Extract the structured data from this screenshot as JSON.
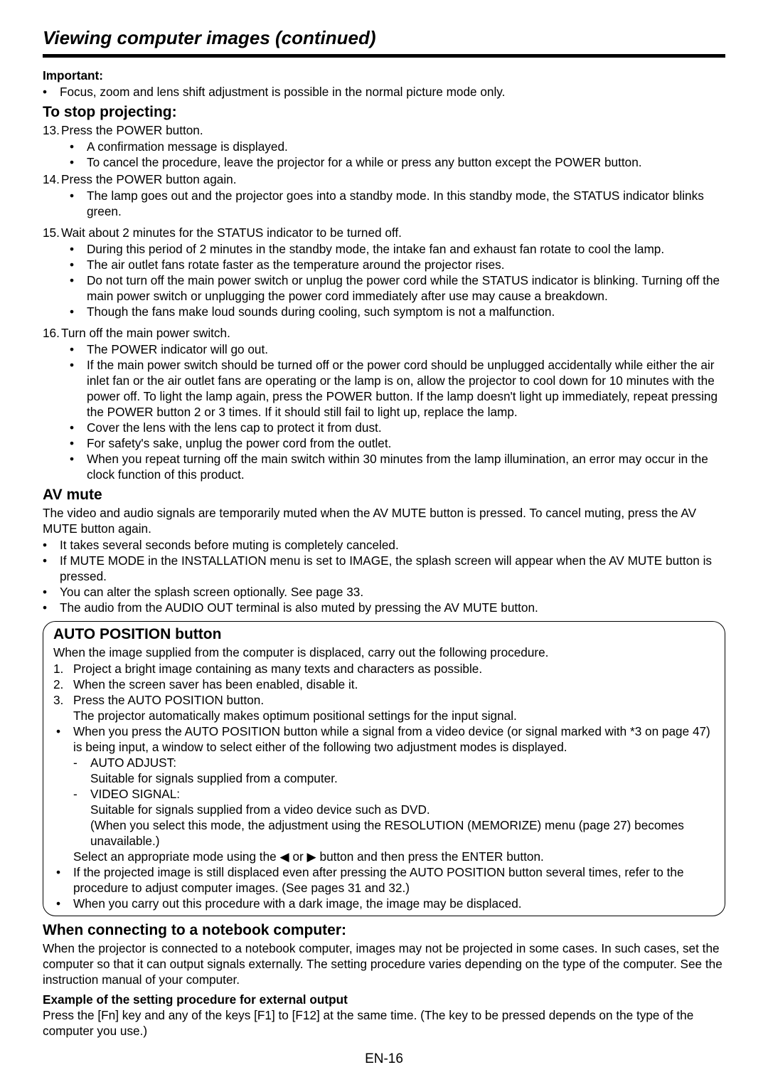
{
  "page": {
    "title": "Viewing computer images (continued)",
    "number": "EN-16"
  },
  "important": {
    "heading": "Important:",
    "bullets": [
      "Focus, zoom and lens shift adjustment is possible in the normal picture mode only."
    ]
  },
  "stop_projecting": {
    "heading": "To stop projecting:",
    "steps": [
      {
        "num": "13.",
        "text": "Press the POWER button.",
        "bullets": [
          "A confirmation message is displayed.",
          "To cancel the procedure, leave the projector for a while or press any button except the POWER button."
        ]
      },
      {
        "num": "14.",
        "text": "Press the POWER button again.",
        "bullets": [
          "The lamp goes out and the projector goes into a standby mode. In this standby mode, the STATUS indicator blinks green."
        ]
      },
      {
        "num": "15.",
        "text": "Wait about 2 minutes for the STATUS indicator to be turned off.",
        "bullets": [
          "During this period of 2 minutes in the standby mode, the intake fan and exhaust fan rotate to cool the lamp.",
          "The air outlet fans rotate faster as the temperature around the projector rises.",
          "Do not turn off the main power switch or unplug the power cord while the STATUS indicator is blinking. Turning off the main power switch or unplugging the power cord immediately after use may cause a breakdown.",
          "Though the fans make loud sounds during cooling, such symptom is not a malfunction."
        ]
      },
      {
        "num": "16.",
        "text": "Turn off the main power switch.",
        "bullets": [
          "The POWER indicator will go out.",
          "If the main power switch should be turned off or the power cord should be unplugged accidentally while either the air inlet fan or the air outlet fans are operating or the lamp is on, allow the projector to cool down for 10 minutes with the power off. To light the lamp again, press the POWER button. If the lamp doesn't light up immediately, repeat pressing the POWER button 2 or 3 times. If it should still fail to light up, replace the lamp.",
          "Cover the lens with the lens cap to protect it from dust.",
          "For safety's sake, unplug the power cord from the outlet.",
          "When you repeat turning off the main switch within 30 minutes from the lamp illumination, an error may occur in the clock function of this product."
        ]
      }
    ]
  },
  "av_mute": {
    "heading": "AV mute",
    "intro": "The video and audio signals are temporarily muted when the AV MUTE button is pressed. To cancel muting, press the AV MUTE button again.",
    "bullets": [
      "It takes several seconds before muting is completely canceled.",
      "If MUTE MODE in the INSTALLATION menu is set to IMAGE, the splash screen will appear when the AV MUTE button is pressed.",
      "You can alter the splash screen optionally. See page 33.",
      "The audio from the AUDIO OUT terminal is also muted by pressing the AV MUTE button."
    ]
  },
  "auto_position": {
    "heading": "AUTO POSITION button",
    "intro": "When the image supplied from the computer is displaced, carry out the following procedure.",
    "ol": [
      "Project a bright image containing as many texts and characters as possible.",
      "When the screen saver has been enabled, disable it.",
      "Press the AUTO POSITION button."
    ],
    "ol_after": "The projector automatically makes optimum positional settings for the input signal.",
    "bullets1": [
      "When you press the AUTO POSITION button while a signal from a video device (or signal marked with *3 on page 47) is being input, a window to select either of the following two adjustment modes is displayed."
    ],
    "dash_items": [
      {
        "title": "AUTO ADJUST:",
        "desc": "Suitable for signals supplied from a computer."
      },
      {
        "title": "VIDEO SIGNAL:",
        "desc": "Suitable for signals supplied from a video device such as DVD.\n(When you select this mode, the adjustment using the RESOLUTION (MEMORIZE) menu (page 27) becomes unavailable.)"
      }
    ],
    "select_line": "Select an appropriate mode using the ◀ or ▶ button and then press the ENTER button.",
    "bullets2": [
      "If the projected image is still displaced even after pressing the AUTO POSITION button several times, refer to the procedure to adjust computer images. (See pages 31 and 32.)",
      "When you carry out this procedure with a dark image, the image may be displaced."
    ]
  },
  "notebook": {
    "heading": "When connecting to a notebook computer:",
    "body": "When the projector is connected to a notebook computer, images may not be projected in some cases. In such cases, set the computer so that it can output signals externally. The setting procedure varies depending on the type of the computer. See the instruction manual of your computer.",
    "example_heading": "Example of the setting procedure for external output",
    "example_body": "Press the [Fn] key and any of the keys [F1] to [F12] at the same time. (The key to be pressed depends on the type of the computer you use.)"
  }
}
